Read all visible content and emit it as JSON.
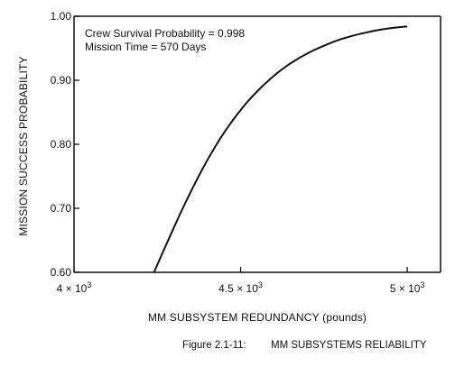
{
  "chart_data": {
    "type": "line",
    "title": "",
    "xlabel": "MM SUBSYSTEM REDUNDANCY (pounds)",
    "ylabel": "MISSION SUCCESS PROBABILITY",
    "xlim": [
      4000,
      5100
    ],
    "ylim": [
      0.6,
      1.0
    ],
    "grid": false,
    "x_ticks": [
      {
        "value": 4000,
        "base": "4 × 10",
        "exp": "3"
      },
      {
        "value": 4500,
        "base": "4.5 × 10",
        "exp": "3"
      },
      {
        "value": 5000,
        "base": "5 × 10",
        "exp": "3"
      }
    ],
    "y_ticks": [
      {
        "value": 1.0,
        "label": "1.00"
      },
      {
        "value": 0.9,
        "label": "0.90"
      },
      {
        "value": 0.8,
        "label": "0.80"
      },
      {
        "value": 0.7,
        "label": "0.70"
      },
      {
        "value": 0.6,
        "label": "0.60"
      }
    ],
    "annotations": [
      "Crew Survival Probability = 0.998",
      "Mission Time = 570 Days"
    ],
    "series": [
      {
        "color": "#111111",
        "x": [
          4240,
          4280,
          4320,
          4360,
          4400,
          4440,
          4480,
          4520,
          4560,
          4600,
          4640,
          4680,
          4720,
          4760,
          4800,
          4840,
          4880,
          4920,
          4960,
          5000
        ],
        "y": [
          0.6,
          0.647,
          0.693,
          0.736,
          0.775,
          0.81,
          0.84,
          0.866,
          0.888,
          0.907,
          0.923,
          0.936,
          0.947,
          0.956,
          0.964,
          0.97,
          0.975,
          0.979,
          0.982,
          0.984
        ]
      }
    ]
  },
  "caption": {
    "figure_number": "Figure 2.1-11:",
    "text": "MM SUBSYSTEMS RELIABILITY"
  }
}
